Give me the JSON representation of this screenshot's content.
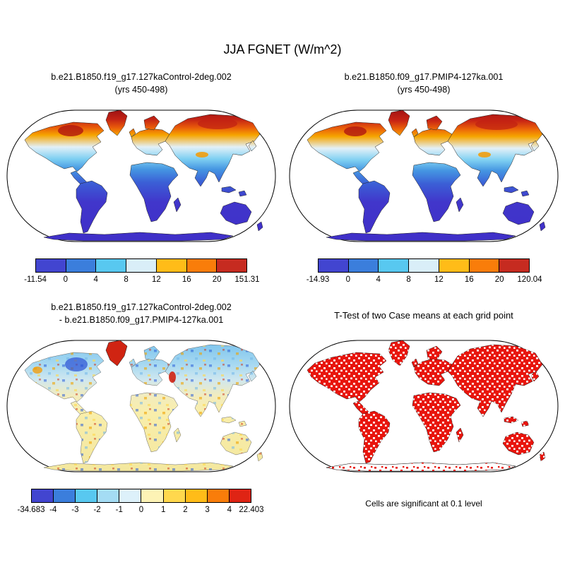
{
  "page": {
    "title": "JJA FGNET (W/m^2)"
  },
  "panels": {
    "top_left": {
      "title_line1": "b.e21.B1850.f19_g17.127kaControl-2deg.002",
      "title_line2": "(yrs 450-498)"
    },
    "top_right": {
      "title_line1": "b.e21.B1850.f09_g17.PMIP4-127ka.001",
      "title_line2": "(yrs 450-498)"
    },
    "bottom_left": {
      "title_line1": "b.e21.B1850.f19_g17.127kaControl-2deg.002",
      "title_line2": "- b.e21.B1850.f09_g17.PMIP4-127ka.001"
    },
    "bottom_right": {
      "title": "T-Test of two Case means at each grid point",
      "caption": "Cells are significant at 0.1 level"
    }
  },
  "colorbars": {
    "top_left": {
      "labels": [
        "-11.54",
        "0",
        "4",
        "8",
        "12",
        "16",
        "20",
        "151.31"
      ],
      "colors": [
        "#4245d0",
        "#3b7edc",
        "#58c8f0",
        "#d9eef8",
        "#ffbc18",
        "#f97d0a",
        "#c62b20"
      ]
    },
    "top_right": {
      "labels": [
        "-14.93",
        "0",
        "4",
        "8",
        "12",
        "16",
        "20",
        "120.04"
      ],
      "colors": [
        "#4245d0",
        "#3b7edc",
        "#58c8f0",
        "#d9eef8",
        "#ffbc18",
        "#f97d0a",
        "#c62b20"
      ]
    },
    "bottom_left": {
      "labels": [
        "-34.683",
        "-4",
        "-3",
        "-2",
        "-1",
        "0",
        "1",
        "2",
        "3",
        "4",
        "22.403"
      ],
      "colors": [
        "#4245d0",
        "#3b7edc",
        "#58c8f0",
        "#a4dcf4",
        "#ddf1fa",
        "#fdf3b5",
        "#ffd84d",
        "#ffbc18",
        "#f97d0a",
        "#df2414"
      ]
    }
  },
  "chart_data": [
    {
      "type": "heatmap",
      "projection": "robinson-world-map",
      "variable": "JJA FGNET (W/m^2)",
      "title": "b.e21.B1850.f19_g17.127kaControl-2deg.002",
      "subtitle": "(yrs 450-498)",
      "colorbar_edges": [
        -11.54,
        0,
        4,
        8,
        12,
        16,
        20,
        151.31
      ],
      "colorbar_colors": [
        "#4245d0",
        "#3b7edc",
        "#58c8f0",
        "#d9eef8",
        "#ffbc18",
        "#f97d0a",
        "#c62b20"
      ],
      "data_min": -11.54,
      "data_max": 151.31,
      "legend_position": "bottom"
    },
    {
      "type": "heatmap",
      "projection": "robinson-world-map",
      "variable": "JJA FGNET (W/m^2)",
      "title": "b.e21.B1850.f09_g17.PMIP4-127ka.001",
      "subtitle": "(yrs 450-498)",
      "colorbar_edges": [
        -14.93,
        0,
        4,
        8,
        12,
        16,
        20,
        120.04
      ],
      "colorbar_colors": [
        "#4245d0",
        "#3b7edc",
        "#58c8f0",
        "#d9eef8",
        "#ffbc18",
        "#f97d0a",
        "#c62b20"
      ],
      "data_min": -14.93,
      "data_max": 120.04,
      "legend_position": "bottom"
    },
    {
      "type": "heatmap",
      "projection": "robinson-world-map",
      "variable": "JJA FGNET difference (W/m^2)",
      "title": "b.e21.B1850.f19_g17.127kaControl-2deg.002 - b.e21.B1850.f09_g17.PMIP4-127ka.001",
      "colorbar_edges": [
        -34.683,
        -4,
        -3,
        -2,
        -1,
        0,
        1,
        2,
        3,
        4,
        22.403
      ],
      "colorbar_colors": [
        "#4245d0",
        "#3b7edc",
        "#58c8f0",
        "#a4dcf4",
        "#ddf1fa",
        "#fdf3b5",
        "#ffd84d",
        "#ffbc18",
        "#f97d0a",
        "#df2414"
      ],
      "data_min": -34.683,
      "data_max": 22.403,
      "legend_position": "bottom"
    },
    {
      "type": "heatmap",
      "projection": "robinson-world-map",
      "variable": "t-test significance mask",
      "title": "T-Test of two Case means at each grid point",
      "note": "Cells are significant at 0.1 level",
      "significance_level": 0.1,
      "significance_color": "#e8150d"
    }
  ]
}
